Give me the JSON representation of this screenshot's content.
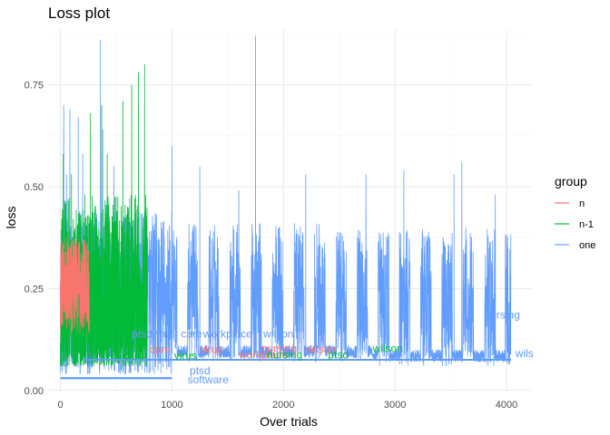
{
  "chart_data": {
    "type": "line",
    "title": "Loss plot",
    "xlabel": "Over trials",
    "ylabel": "loss",
    "xlim": [
      -110,
      4220
    ],
    "ylim": [
      -0.005,
      0.885
    ],
    "x_ticks": [
      0,
      1000,
      2000,
      3000,
      4000
    ],
    "x_tick_labels": [
      "0",
      "1000",
      "2000",
      "3000",
      "4000"
    ],
    "y_ticks": [
      0.0,
      0.25,
      0.5,
      0.75
    ],
    "y_tick_labels": [
      "0.00",
      "0.25",
      "0.50",
      "0.75"
    ],
    "grid": true,
    "legend": {
      "title": "group",
      "position": "right",
      "entries": [
        {
          "name": "n",
          "color": "#F8766D"
        },
        {
          "name": "n-1",
          "color": "#00BA38"
        },
        {
          "name": "one",
          "color": "#619CFF"
        }
      ]
    },
    "series": [
      {
        "name": "one",
        "color": "#619CFF",
        "x_range": [
          0,
          4040
        ],
        "baseline_segments": [
          {
            "x": [
              0,
              200
            ],
            "baseline": 0.14
          },
          {
            "x": [
              200,
              1000
            ],
            "baseline": 0.1
          },
          {
            "x": [
              1000,
              2800
            ],
            "baseline": 0.09
          },
          {
            "x": [
              2800,
              4040
            ],
            "baseline": 0.08
          }
        ],
        "spikes": [
          {
            "x": 30,
            "y": 0.7
          },
          {
            "x": 55,
            "y": 0.53
          },
          {
            "x": 85,
            "y": 0.69
          },
          {
            "x": 160,
            "y": 0.67
          },
          {
            "x": 200,
            "y": 0.58
          },
          {
            "x": 360,
            "y": 0.86
          },
          {
            "x": 380,
            "y": 0.64
          },
          {
            "x": 480,
            "y": 0.55
          },
          {
            "x": 620,
            "y": 0.47
          },
          {
            "x": 1000,
            "y": 0.6
          },
          {
            "x": 1250,
            "y": 0.55
          },
          {
            "x": 1600,
            "y": 0.49
          },
          {
            "x": 1750,
            "y": 0.87
          },
          {
            "x": 2200,
            "y": 0.53
          },
          {
            "x": 2740,
            "y": 0.53
          },
          {
            "x": 3080,
            "y": 0.54
          },
          {
            "x": 3530,
            "y": 0.53
          },
          {
            "x": 3600,
            "y": 0.56
          },
          {
            "x": 3900,
            "y": 0.48
          }
        ]
      },
      {
        "name": "n-1",
        "color": "#00BA38",
        "x_range": [
          0,
          780
        ],
        "baseline": 0.1,
        "spikes": [
          {
            "x": 25,
            "y": 0.58
          },
          {
            "x": 100,
            "y": 0.53
          },
          {
            "x": 220,
            "y": 0.48
          },
          {
            "x": 270,
            "y": 0.68
          },
          {
            "x": 370,
            "y": 0.7
          },
          {
            "x": 420,
            "y": 0.58
          },
          {
            "x": 560,
            "y": 0.71
          },
          {
            "x": 640,
            "y": 0.75
          },
          {
            "x": 700,
            "y": 0.78
          },
          {
            "x": 755,
            "y": 0.8
          }
        ]
      },
      {
        "name": "n",
        "color": "#F8766D",
        "x_range": [
          0,
          260
        ],
        "baseline": 0.2,
        "peak": 0.38
      }
    ],
    "annotations": [
      {
        "text": "ptsd",
        "x": 640,
        "y": 0.13,
        "color": "#619CFF"
      },
      {
        "text": "virus",
        "x": 820,
        "y": 0.13,
        "color": "#619CFF"
      },
      {
        "text": "care",
        "x": 1080,
        "y": 0.13,
        "color": "#619CFF"
      },
      {
        "text": "workplace",
        "x": 1280,
        "y": 0.13,
        "color": "#619CFF"
      },
      {
        "text": "wilson",
        "x": 1820,
        "y": 0.13,
        "color": "#619CFF"
      },
      {
        "text": "nursing",
        "x": 3800,
        "y": 0.176,
        "color": "#619CFF"
      },
      {
        "text": "wils",
        "x": 4080,
        "y": 0.082,
        "color": "#619CFF"
      },
      {
        "text": "ptsd",
        "x": 1160,
        "y": 0.04,
        "color": "#619CFF"
      },
      {
        "text": "software",
        "x": 1140,
        "y": 0.017,
        "color": "#619CFF"
      },
      {
        "text": "care",
        "x": 800,
        "y": 0.092,
        "color": "#F8766D"
      },
      {
        "text": "virus",
        "x": 1250,
        "y": 0.092,
        "color": "#F8766D"
      },
      {
        "text": "nursing",
        "x": 1800,
        "y": 0.094,
        "color": "#F8766D"
      },
      {
        "text": "wilson",
        "x": 2200,
        "y": 0.092,
        "color": "#F8766D"
      },
      {
        "text": "workplace",
        "x": 1600,
        "y": 0.078,
        "color": "#F8766D"
      },
      {
        "text": "care",
        "x": 560,
        "y": 0.076,
        "color": "#00BA38"
      },
      {
        "text": "virus",
        "x": 1020,
        "y": 0.076,
        "color": "#00BA38"
      },
      {
        "text": "nursing",
        "x": 1850,
        "y": 0.078,
        "color": "#00BA38"
      },
      {
        "text": "ptsd",
        "x": 2400,
        "y": 0.078,
        "color": "#00BA38"
      },
      {
        "text": "wilson",
        "x": 2800,
        "y": 0.094,
        "color": "#00BA38"
      }
    ]
  }
}
